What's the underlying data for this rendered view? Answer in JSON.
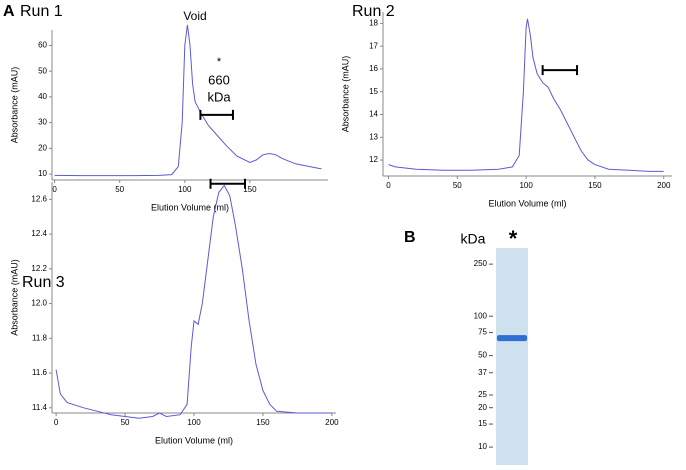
{
  "panel_labels": [
    "A",
    "B"
  ],
  "chart_data": [
    {
      "type": "line",
      "title": "Run 1",
      "xlabel": "Elution Volume (ml)",
      "ylabel": "Absorbance (mAU)",
      "x": [
        0,
        20,
        40,
        60,
        80,
        90,
        95,
        98,
        100,
        102,
        104,
        106,
        108,
        112,
        118,
        125,
        132,
        140,
        150,
        155,
        160,
        165,
        170,
        175,
        185,
        195,
        205
      ],
      "series": [
        {
          "color": "#5a5ad8",
          "values": [
            9.5,
            9.4,
            9.4,
            9.4,
            9.5,
            9.8,
            13,
            30,
            60,
            68,
            60,
            45,
            38,
            34,
            29,
            25,
            21,
            17,
            14.5,
            15.5,
            17.5,
            18,
            17.5,
            16,
            14,
            13,
            12
          ]
        }
      ],
      "xlim": [
        -2,
        210
      ],
      "ylim": [
        7.7,
        66
      ],
      "xticks": [
        0,
        50,
        100,
        150
      ],
      "yticks": [
        10,
        20,
        30,
        40,
        50,
        60
      ],
      "annotations": [
        "Void",
        "*",
        "660",
        "kDa"
      ],
      "bracket": {
        "x": [
          112,
          137
        ],
        "y": 33
      }
    },
    {
      "type": "line",
      "title": "Run 2",
      "xlabel": "Elution Volume (ml)",
      "ylabel": "Absorbance (mAU)",
      "x": [
        0,
        5,
        20,
        40,
        60,
        80,
        90,
        95,
        98,
        100,
        101,
        103,
        105,
        108,
        112,
        116,
        120,
        125,
        130,
        135,
        140,
        145,
        150,
        160,
        175,
        190,
        200
      ],
      "series": [
        {
          "color": "#5a5ad8",
          "values": [
            11.8,
            11.7,
            11.6,
            11.55,
            11.55,
            11.6,
            11.7,
            12.2,
            15,
            17.8,
            18.2,
            17.5,
            16.5,
            15.8,
            15.4,
            15.2,
            14.7,
            14.2,
            13.6,
            13,
            12.4,
            12,
            11.8,
            11.6,
            11.55,
            11.5,
            11.5
          ]
        }
      ],
      "xlim": [
        -4,
        206
      ],
      "ylim": [
        11.3,
        18.5
      ],
      "xticks": [
        0,
        50,
        100,
        150,
        200
      ],
      "yticks": [
        12,
        13,
        14,
        15,
        16,
        17,
        18
      ],
      "bracket": {
        "x": [
          112,
          137
        ],
        "y": 15.95
      }
    },
    {
      "type": "line",
      "title": "Run 3",
      "xlabel": "Elution Volume (ml)",
      "ylabel": "Absorbance (mAU)",
      "x": [
        0,
        3,
        8,
        20,
        30,
        40,
        50,
        60,
        70,
        75,
        80,
        90,
        95,
        98,
        100,
        103,
        106,
        110,
        114,
        118,
        122,
        126,
        130,
        135,
        140,
        145,
        150,
        155,
        160,
        175,
        190,
        200
      ],
      "series": [
        {
          "color": "#5a5ad8",
          "values": [
            11.62,
            11.48,
            11.43,
            11.4,
            11.38,
            11.36,
            11.35,
            11.34,
            11.35,
            11.37,
            11.35,
            11.36,
            11.42,
            11.75,
            11.9,
            11.88,
            12.0,
            12.25,
            12.5,
            12.64,
            12.68,
            12.62,
            12.45,
            12.2,
            11.9,
            11.65,
            11.5,
            11.42,
            11.38,
            11.37,
            11.37,
            11.37
          ]
        }
      ],
      "xlim": [
        -3,
        203
      ],
      "ylim": [
        11.37,
        12.7
      ],
      "xticks": [
        0,
        50,
        100,
        150,
        200
      ],
      "yticks": [
        {
          "value": 11.4,
          "label": "11.4"
        },
        {
          "value": 11.6,
          "label": "11.6"
        },
        {
          "value": 11.8,
          "label": "11.8"
        },
        {
          "value": 12.0,
          "label": "12.0"
        },
        {
          "value": 12.2,
          "label": "12.2"
        },
        {
          "value": 12.4,
          "label": "12.4"
        },
        {
          "value": 12.6,
          "label": "12.6"
        }
      ],
      "bracket": {
        "x": [
          112,
          137
        ],
        "y": 12.69
      }
    },
    {
      "type": "gel",
      "ylabel": "kDa",
      "lane_label": "*",
      "log": true,
      "ylim": [
        332,
        7.3
      ],
      "yticks": [
        250,
        100,
        75,
        50,
        37,
        25,
        20,
        15,
        10
      ],
      "band": 68,
      "color": "#2e6fd0"
    }
  ]
}
